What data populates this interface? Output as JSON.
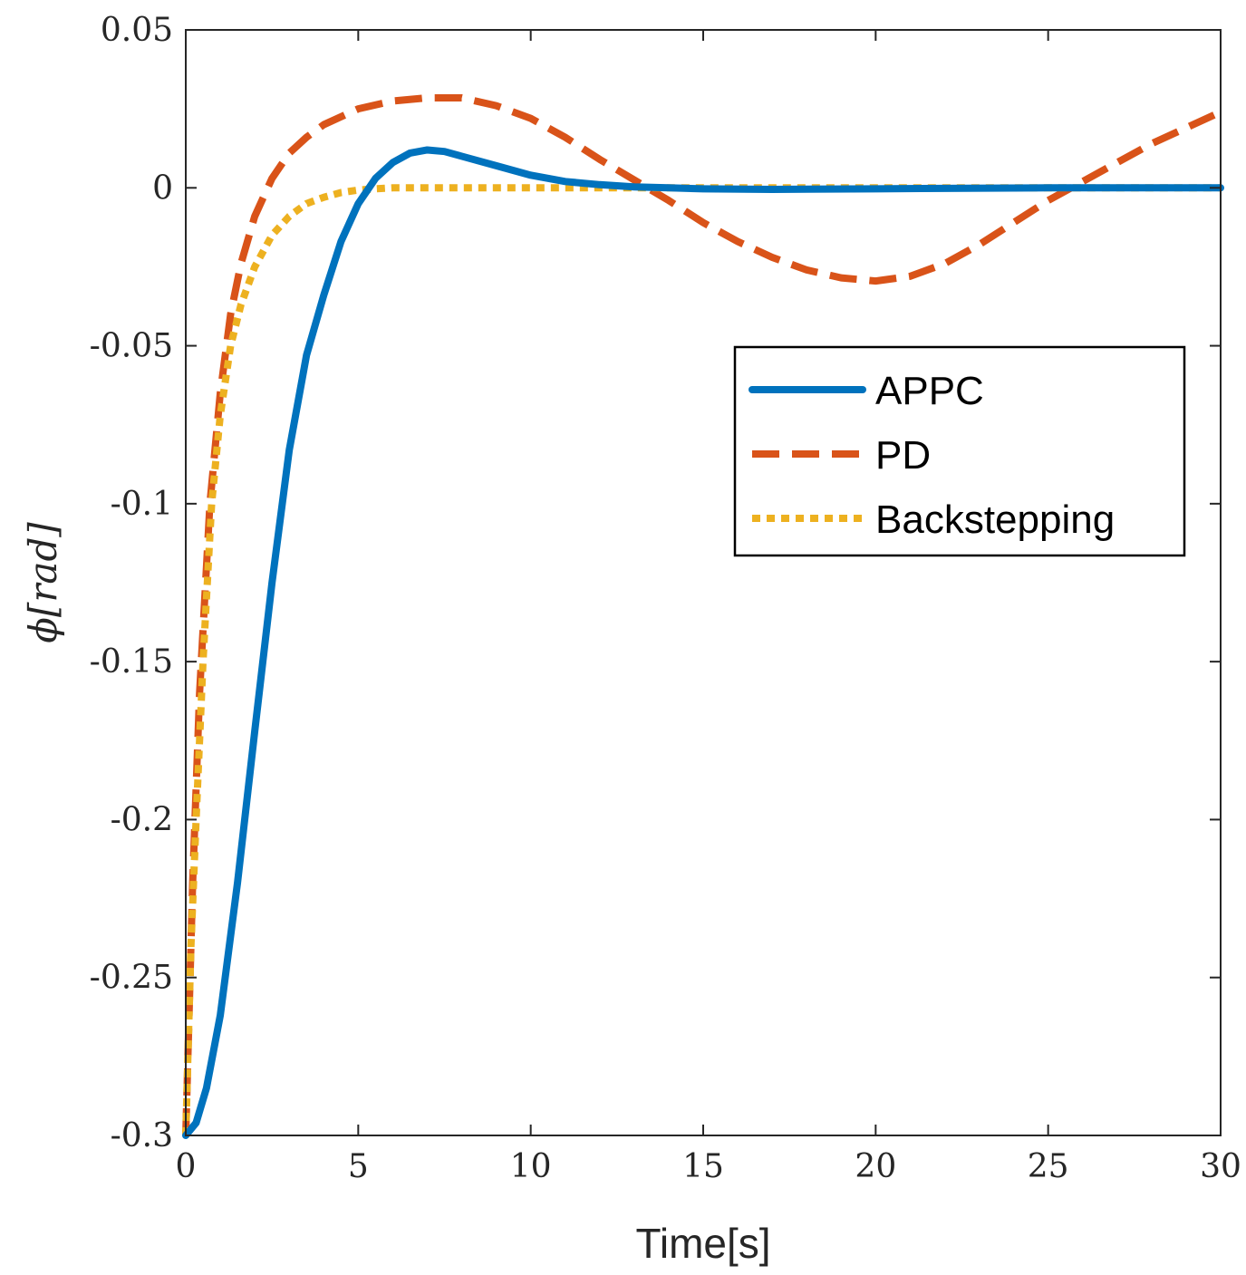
{
  "chart_data": {
    "type": "line",
    "title": "",
    "xlabel": "Time[s]",
    "ylabel_symbol": "ϕ",
    "ylabel_unit": "[rad]",
    "xlim": [
      0,
      30
    ],
    "ylim": [
      -0.3,
      0.05
    ],
    "xticks": [
      0,
      5,
      10,
      15,
      20,
      25,
      30
    ],
    "xtick_labels": [
      "0",
      "5",
      "10",
      "15",
      "20",
      "25",
      "30"
    ],
    "yticks": [
      0.05,
      0,
      -0.05,
      -0.1,
      -0.15,
      -0.2,
      -0.25,
      -0.3
    ],
    "ytick_labels": [
      "0.05",
      "0",
      "-0.05",
      "-0.1",
      "-0.15",
      "-0.2",
      "-0.25",
      "-0.3"
    ],
    "grid": false,
    "legend_position": "center-right",
    "series": [
      {
        "name": "APPC",
        "color": "#0072BD",
        "style": "solid",
        "x": [
          0,
          0.3,
          0.6,
          1,
          1.5,
          2,
          2.5,
          3,
          3.5,
          4,
          4.5,
          5,
          5.5,
          6,
          6.5,
          7,
          7.5,
          8,
          9,
          10,
          11,
          12,
          13,
          14,
          15,
          17,
          20,
          25,
          30
        ],
        "y": [
          -0.3,
          -0.296,
          -0.285,
          -0.262,
          -0.22,
          -0.172,
          -0.125,
          -0.083,
          -0.053,
          -0.034,
          -0.017,
          -0.005,
          0.003,
          0.008,
          0.011,
          0.012,
          0.0115,
          0.01,
          0.007,
          0.004,
          0.002,
          0.001,
          0.0003,
          0.0,
          -0.0003,
          -0.0005,
          -0.0003,
          0.0,
          0.0
        ]
      },
      {
        "name": "PD",
        "color": "#D95319",
        "style": "dashed",
        "x": [
          0,
          0.2,
          0.4,
          0.7,
          1,
          1.3,
          1.6,
          2,
          2.5,
          3,
          3.5,
          4,
          5,
          6,
          7,
          8,
          9,
          10,
          11,
          12,
          13,
          14,
          15,
          16,
          17,
          18,
          19,
          20,
          21,
          22,
          23,
          24,
          25,
          26,
          27,
          28,
          29,
          30
        ],
        "y": [
          -0.3,
          -0.22,
          -0.16,
          -0.1,
          -0.065,
          -0.04,
          -0.024,
          -0.009,
          0.003,
          0.011,
          0.016,
          0.02,
          0.025,
          0.0275,
          0.0285,
          0.0285,
          0.026,
          0.022,
          0.016,
          0.009,
          0.0025,
          -0.004,
          -0.011,
          -0.017,
          -0.022,
          -0.026,
          -0.0285,
          -0.0295,
          -0.028,
          -0.024,
          -0.018,
          -0.011,
          -0.004,
          0.002,
          0.008,
          0.014,
          0.019,
          0.024
        ]
      },
      {
        "name": "Backstepping",
        "color": "#EDB120",
        "style": "dotted",
        "x": [
          0,
          0.15,
          0.3,
          0.5,
          0.75,
          1,
          1.3,
          1.6,
          2,
          2.5,
          3,
          3.5,
          4,
          4.5,
          5,
          5.5,
          6,
          7,
          8,
          10,
          15,
          20,
          25,
          30
        ],
        "y": [
          -0.3,
          -0.24,
          -0.2,
          -0.15,
          -0.1,
          -0.072,
          -0.05,
          -0.037,
          -0.025,
          -0.015,
          -0.009,
          -0.005,
          -0.003,
          -0.0015,
          -0.0007,
          -0.0003,
          0.0,
          0.0,
          0.0,
          0.0,
          0.0,
          0.0,
          0.0,
          0.0
        ]
      }
    ]
  }
}
